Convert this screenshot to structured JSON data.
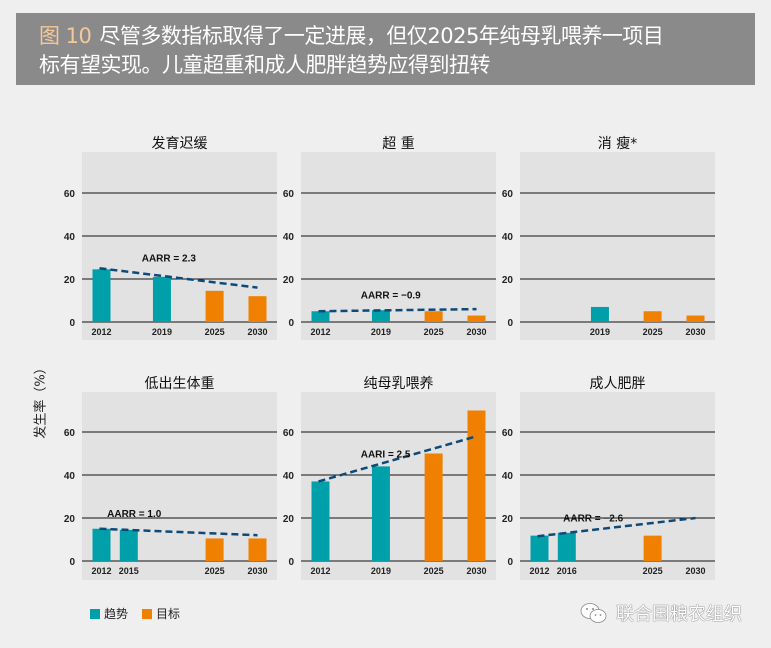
{
  "header": {
    "figure_number": "图 10",
    "title_line1": "尽管多数指标取得了一定进展，但仅2025年纯母乳喂养一项目",
    "title_line2": "标有望实现。儿童超重和成人肥胖趋势应得到扭转"
  },
  "y_axis_label": "发生率（%）",
  "legend": {
    "trend_label": "趋势",
    "target_label": "目标"
  },
  "watermark": "联合国粮农组织",
  "colors": {
    "trend": "#00a0aa",
    "target": "#f08000",
    "trendline": "#0d4a78",
    "plot_bg": "#e2e2e2",
    "header_bg": "#8a8a8a"
  },
  "chart_data": [
    {
      "type": "bar",
      "title": "发育迟缓",
      "ylim": [
        0,
        75
      ],
      "yticks": [
        0,
        20,
        40,
        60
      ],
      "categories": [
        "2012",
        "2019",
        "2025",
        "2030"
      ],
      "series": [
        {
          "name": "趋势",
          "values": [
            24.5,
            21,
            null,
            null
          ]
        },
        {
          "name": "目标",
          "values": [
            null,
            null,
            14.5,
            12
          ]
        }
      ],
      "trendline": {
        "from": [
          "2012",
          25
        ],
        "to": [
          "2030",
          16
        ]
      },
      "annotation": "AARR = 2.3"
    },
    {
      "type": "bar",
      "title": "超 重",
      "ylim": [
        0,
        75
      ],
      "yticks": [
        0,
        20,
        40,
        60
      ],
      "categories": [
        "2012",
        "2019",
        "2025",
        "2030"
      ],
      "series": [
        {
          "name": "趋势",
          "values": [
            5,
            5.5,
            null,
            null
          ]
        },
        {
          "name": "目标",
          "values": [
            null,
            null,
            5,
            3
          ]
        }
      ],
      "trendline": {
        "from": [
          "2012",
          5
        ],
        "to": [
          "2030",
          6
        ]
      },
      "annotation": "AARR = −0.9"
    },
    {
      "type": "bar",
      "title": "消 瘦*",
      "ylim": [
        0,
        75
      ],
      "yticks": [
        0,
        20,
        40,
        60
      ],
      "categories": [
        "",
        "2019",
        "2025",
        "2030"
      ],
      "series": [
        {
          "name": "趋势",
          "values": [
            null,
            7,
            null,
            null
          ]
        },
        {
          "name": "目标",
          "values": [
            null,
            null,
            5,
            3
          ]
        }
      ],
      "trendline": null,
      "annotation": ""
    },
    {
      "type": "bar",
      "title": "低出生体重",
      "ylim": [
        0,
        75
      ],
      "yticks": [
        0,
        20,
        40,
        60
      ],
      "categories": [
        "2012",
        "2015",
        "2025",
        "2030"
      ],
      "series": [
        {
          "name": "趋势",
          "values": [
            15,
            14.5,
            null,
            null
          ]
        },
        {
          "name": "目标",
          "values": [
            null,
            null,
            10.5,
            10.5
          ]
        }
      ],
      "trendline": {
        "from": [
          "2012",
          15
        ],
        "to": [
          "2030",
          12
        ]
      },
      "annotation": "AARR = 1.0"
    },
    {
      "type": "bar",
      "title": "纯母乳喂养",
      "ylim": [
        0,
        75
      ],
      "yticks": [
        0,
        20,
        40,
        60
      ],
      "categories": [
        "2012",
        "2019",
        "2025",
        "2030"
      ],
      "series": [
        {
          "name": "趋势",
          "values": [
            37,
            44,
            null,
            null
          ]
        },
        {
          "name": "目标",
          "values": [
            null,
            null,
            50,
            70
          ]
        }
      ],
      "trendline": {
        "from": [
          "2012",
          37
        ],
        "to": [
          "2030",
          58
        ]
      },
      "annotation": "AARI = 2.5"
    },
    {
      "type": "bar",
      "title": "成人肥胖",
      "ylim": [
        0,
        75
      ],
      "yticks": [
        0,
        20,
        40,
        60
      ],
      "categories": [
        "2012",
        "2016",
        "2025",
        "2030"
      ],
      "series": [
        {
          "name": "趋势",
          "values": [
            11.8,
            13.1,
            null,
            null
          ]
        },
        {
          "name": "目标",
          "values": [
            null,
            null,
            11.8,
            null
          ]
        }
      ],
      "trendline": {
        "from": [
          "2012",
          11.5
        ],
        "to": [
          "2030",
          20
        ]
      },
      "annotation": "AARR = −2.6"
    }
  ]
}
